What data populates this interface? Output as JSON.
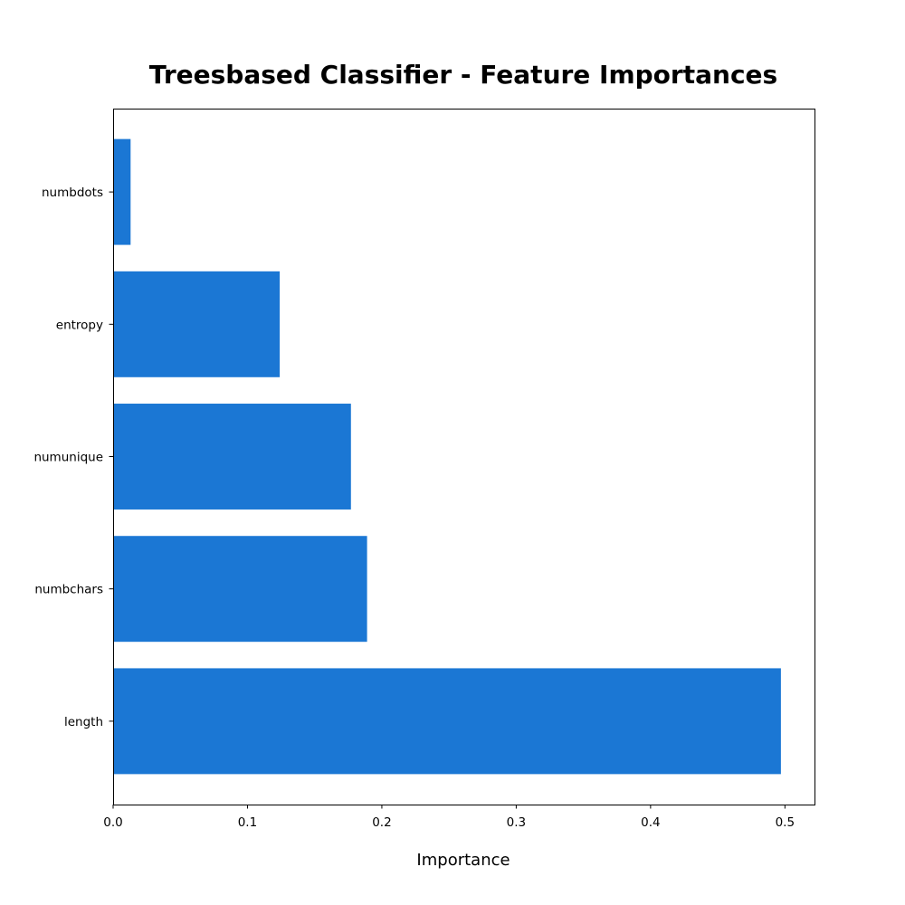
{
  "chart_data": {
    "type": "bar",
    "orientation": "horizontal",
    "title": "Treesbased Classifier - Feature Importances",
    "xlabel": "Importance",
    "ylabel": "",
    "categories": [
      "length",
      "numbchars",
      "numunique",
      "entropy",
      "numbdots"
    ],
    "values": [
      0.497,
      0.189,
      0.177,
      0.124,
      0.013
    ],
    "xlim": [
      0,
      0.522
    ],
    "xticks": [
      "0.0",
      "0.1",
      "0.2",
      "0.3",
      "0.4",
      "0.5"
    ],
    "grid": false,
    "bar_color": "#1b77d4"
  }
}
